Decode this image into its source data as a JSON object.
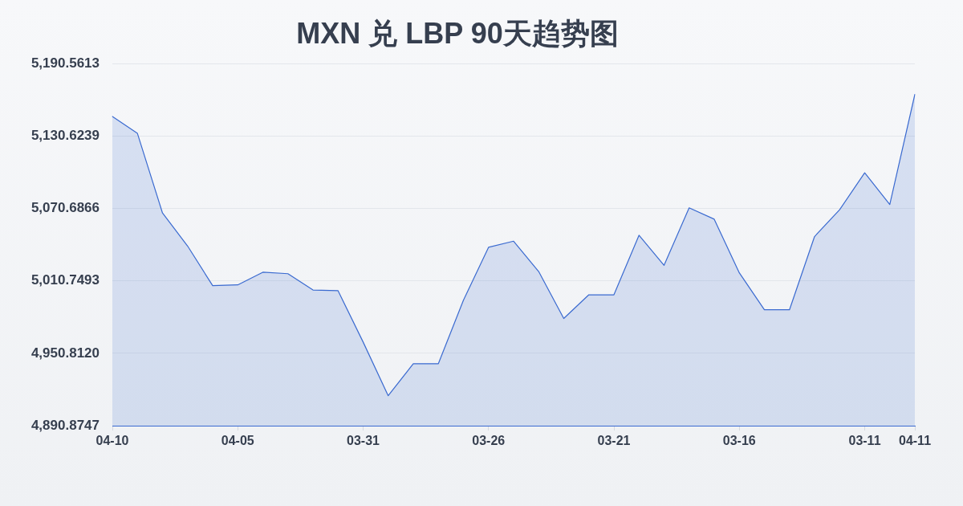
{
  "chart_data": {
    "type": "area",
    "title": "MXN 兑 LBP 90天趋势图",
    "categories": [
      "04-10",
      null,
      null,
      null,
      null,
      "04-05",
      null,
      null,
      null,
      null,
      "03-31",
      null,
      null,
      null,
      null,
      "03-26",
      null,
      null,
      null,
      null,
      "03-21",
      null,
      null,
      null,
      null,
      "03-16",
      null,
      null,
      null,
      null,
      "03-11",
      null,
      "04-11"
    ],
    "values": [
      5146.8,
      5132.8,
      5066.9,
      5039.6,
      5006.8,
      5007.4,
      5017.9,
      5016.7,
      5003.2,
      5002.6,
      4960.1,
      4915.7,
      4942.2,
      4942.2,
      4994.8,
      5038.5,
      5043.6,
      5018.5,
      4979.6,
      4999.2,
      4999.2,
      5048.5,
      5023.6,
      5071.2,
      5061.8,
      5017.4,
      4986.8,
      4986.8,
      5047.4,
      5069.6,
      5100.2,
      5074.0,
      5165.1
    ],
    "color": "#3a6ad0",
    "ylim": [
      4890.8747,
      5190.5613
    ],
    "yticks": [
      {
        "value": 4890.8747,
        "label": "4,890.8747"
      },
      {
        "value": 4950.812,
        "label": "4,950.8120"
      },
      {
        "value": 5010.7493,
        "label": "5,010.7493"
      },
      {
        "value": 5070.6866,
        "label": "5,070.6866"
      },
      {
        "value": 5130.6239,
        "label": "5,130.6239"
      },
      {
        "value": 5190.5613,
        "label": "5,190.5613"
      }
    ],
    "grid": "y",
    "legend": false,
    "marker": "none",
    "line_style": "solid"
  }
}
